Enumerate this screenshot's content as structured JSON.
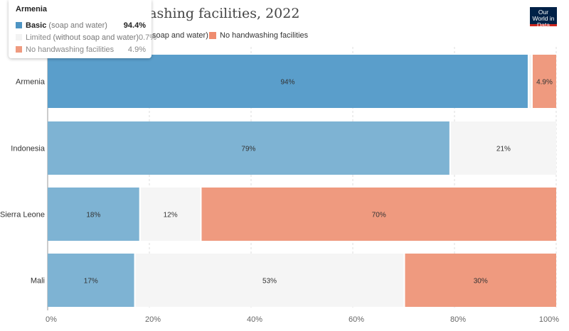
{
  "header": {
    "title_visible": "S... access to handwashing facilities, 2022",
    "logo": "Our World in Data"
  },
  "legend": [
    {
      "label": "Basic (soap and water)",
      "visible_text": "soap and water)",
      "color": "#4e94c3"
    },
    {
      "label": "No handwashing facilities",
      "visible_text": "No handwashing facilities",
      "color": "#ef8c6f"
    }
  ],
  "tooltip": {
    "title": "Armenia",
    "rows": [
      {
        "label": "Basic",
        "sublabel": "(soap and water)",
        "value": "94.4%",
        "color": "#4e94c3"
      },
      {
        "label": "Limited",
        "sublabel": "(without soap and water)",
        "value": "0.7%",
        "color": "#f3f3f3"
      },
      {
        "label": "No handwashing facilities",
        "sublabel": "",
        "value": "4.9%",
        "color": "#ef9a7f"
      }
    ]
  },
  "chart_data": {
    "type": "bar",
    "orientation": "horizontal",
    "stacked": true,
    "categories": [
      "Armenia",
      "Indonesia",
      "Sierra Leone",
      "Mali"
    ],
    "series": [
      {
        "name": "Basic (soap and water)",
        "values": [
          94.4,
          79,
          18,
          17
        ],
        "labels": [
          "94%",
          "79%",
          "18%",
          "17%"
        ]
      },
      {
        "name": "Limited (without soap and water)",
        "values": [
          0.7,
          21,
          12,
          53
        ],
        "labels": [
          "",
          "21%",
          "12%",
          "53%"
        ]
      },
      {
        "name": "No handwashing facilities",
        "values": [
          4.9,
          0,
          70,
          30
        ],
        "labels": [
          "4.9%",
          "",
          "70%",
          "30%"
        ]
      }
    ],
    "xlim": [
      0,
      100
    ],
    "xticks": [
      "0%",
      "20%",
      "40%",
      "60%",
      "80%",
      "100%"
    ],
    "grid": true,
    "colors": {
      "basic": "#5a9ecb",
      "basic_dim": "#7eb3d3",
      "limited": "#f5f5f5",
      "none": "#ef9a7f"
    }
  }
}
